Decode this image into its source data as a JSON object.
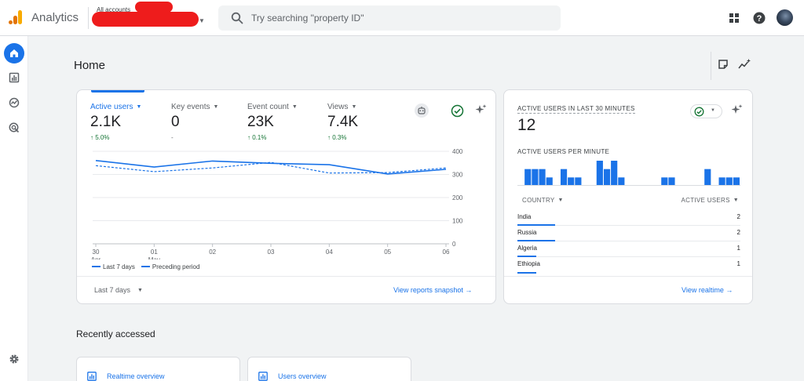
{
  "header": {
    "app_name": "Analytics",
    "accounts_label": "All accounts",
    "search_placeholder": "Try searching \"property ID\""
  },
  "colors": {
    "accent": "#1a73e8",
    "positive": "#137333",
    "redaction": "#ee1c1c"
  },
  "rail": {
    "items": [
      "home-icon",
      "reports-icon",
      "explore-icon",
      "advertising-icon",
      "settings-icon"
    ]
  },
  "page": {
    "title": "Home"
  },
  "metrics": [
    {
      "label": "Active users",
      "value": "2.1K",
      "change": "↑ 5.0%"
    },
    {
      "label": "Key events",
      "value": "0",
      "change": "-"
    },
    {
      "label": "Event count",
      "value": "23K",
      "change": "↑ 0.1%"
    },
    {
      "label": "Views",
      "value": "7.4K",
      "change": "↑ 0.3%"
    }
  ],
  "chart_data": {
    "type": "line",
    "x_ticks": [
      {
        "day": "30",
        "month": "Apr"
      },
      {
        "day": "01",
        "month": "May"
      },
      {
        "day": "02",
        "month": ""
      },
      {
        "day": "03",
        "month": ""
      },
      {
        "day": "04",
        "month": ""
      },
      {
        "day": "05",
        "month": ""
      },
      {
        "day": "06",
        "month": ""
      }
    ],
    "y_ticks": [
      "400",
      "300",
      "200",
      "100",
      "0"
    ],
    "ylim": [
      0,
      400
    ],
    "series": [
      {
        "name": "Last 7 days",
        "style": "solid",
        "values": [
          360,
          332,
          358,
          348,
          342,
          302,
          322
        ]
      },
      {
        "name": "Preceding period",
        "style": "dashed",
        "values": [
          338,
          312,
          328,
          352,
          306,
          308,
          328
        ]
      }
    ],
    "legend_position": "bottom-left"
  },
  "main_card": {
    "legend_current": "Last 7 days",
    "legend_previous": "Preceding period",
    "date_range": "Last 7 days",
    "link": "View reports snapshot"
  },
  "realtime": {
    "title": "ACTIVE USERS IN LAST 30 MINUTES",
    "value": "12",
    "per_minute_label": "ACTIVE USERS PER MINUTE",
    "per_minute": [
      0,
      2,
      2,
      2,
      1,
      0,
      2,
      1,
      1,
      0,
      0,
      3,
      2,
      3,
      1,
      0,
      0,
      0,
      0,
      0,
      1,
      1,
      0,
      0,
      0,
      0,
      2,
      0,
      1,
      1,
      1
    ],
    "col_country": "COUNTRY",
    "col_users": "ACTIVE USERS",
    "rows": [
      {
        "country": "India",
        "users": "2",
        "fraction": 1.0
      },
      {
        "country": "Russia",
        "users": "2",
        "fraction": 1.0
      },
      {
        "country": "Algeria",
        "users": "1",
        "fraction": 0.5
      },
      {
        "country": "Ethiopia",
        "users": "1",
        "fraction": 0.5
      }
    ],
    "link": "View realtime"
  },
  "recent": {
    "title": "Recently accessed",
    "items": [
      {
        "label": "Realtime overview"
      },
      {
        "label": "Users overview"
      }
    ]
  }
}
